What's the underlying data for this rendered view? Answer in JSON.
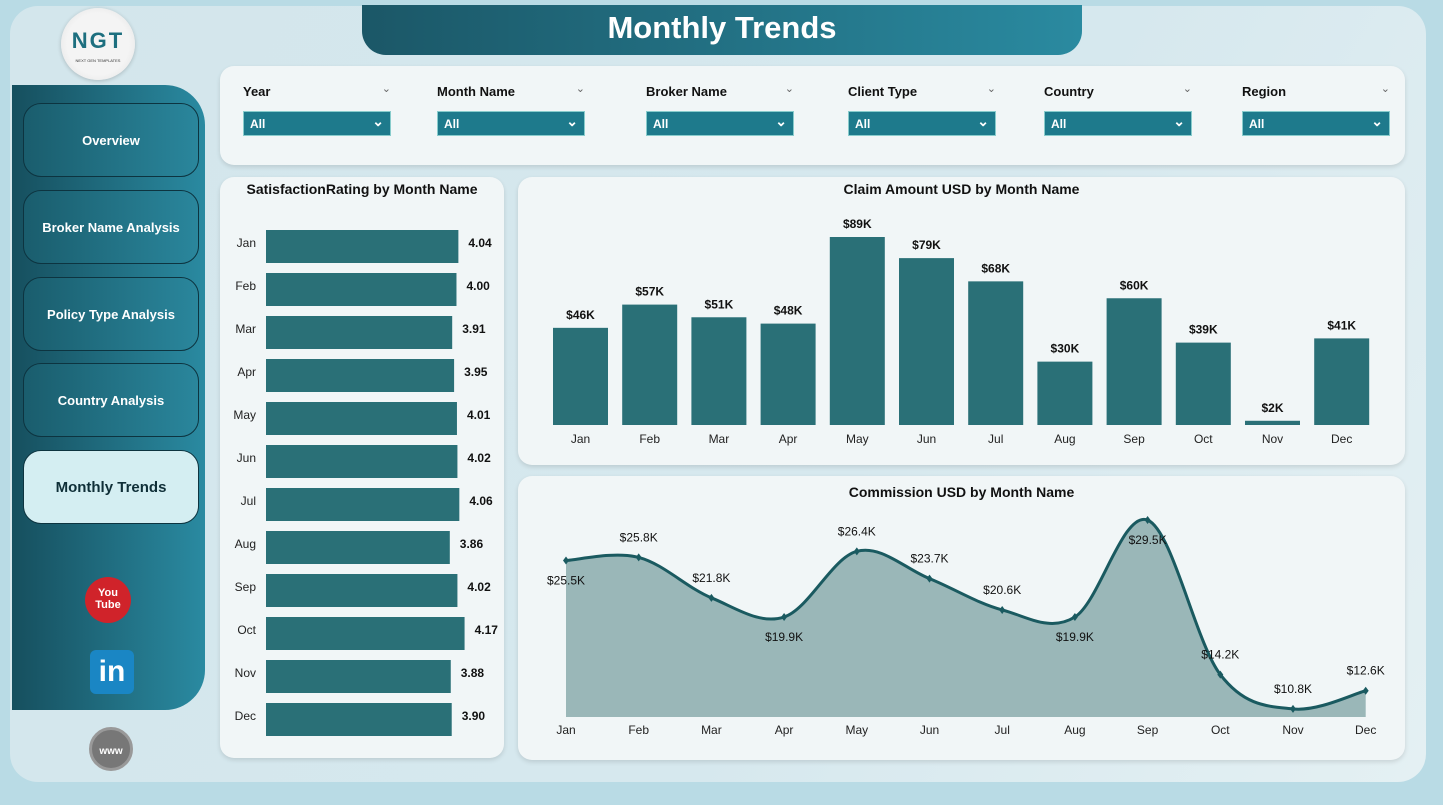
{
  "logo": {
    "text": "NGT",
    "subtext": "NEXT GEN TEMPLATES"
  },
  "title": "Monthly Trends",
  "nav": [
    {
      "label": "Overview"
    },
    {
      "label": "Broker Name Analysis"
    },
    {
      "label": "Policy Type Analysis"
    },
    {
      "label": "Country Analysis"
    },
    {
      "label": "Monthly Trends",
      "active": true
    }
  ],
  "social": {
    "youtube": "You Tube",
    "linkedin": "in",
    "web": "www"
  },
  "filters": [
    {
      "label": "Year",
      "value": "All"
    },
    {
      "label": "Month Name",
      "value": "All"
    },
    {
      "label": "Broker Name",
      "value": "All"
    },
    {
      "label": "Client Type",
      "value": "All"
    },
    {
      "label": "Country",
      "value": "All"
    },
    {
      "label": "Region",
      "value": "All"
    }
  ],
  "colors": {
    "bar": "#2a7077",
    "line": "#1a5a60",
    "area": "#9ab7b8",
    "accent": "#1e7a8c"
  },
  "chart_data": [
    {
      "type": "bar",
      "orientation": "horizontal",
      "title": "SatisfactionRating by Month Name",
      "categories": [
        "Jan",
        "Feb",
        "Mar",
        "Apr",
        "May",
        "Jun",
        "Jul",
        "Aug",
        "Sep",
        "Oct",
        "Nov",
        "Dec"
      ],
      "values": [
        4.04,
        4.0,
        3.91,
        3.95,
        4.01,
        4.02,
        4.06,
        3.86,
        4.02,
        4.17,
        3.88,
        3.9
      ],
      "labels": [
        "4.04",
        "4.00",
        "3.91",
        "3.95",
        "4.01",
        "4.02",
        "4.06",
        "3.86",
        "4.02",
        "4.17",
        "3.88",
        "3.90"
      ],
      "xlim": [
        0,
        4.2
      ]
    },
    {
      "type": "bar",
      "title": "Claim Amount USD by Month Name",
      "categories": [
        "Jan",
        "Feb",
        "Mar",
        "Apr",
        "May",
        "Jun",
        "Jul",
        "Aug",
        "Sep",
        "Oct",
        "Nov",
        "Dec"
      ],
      "values": [
        46000,
        57000,
        51000,
        48000,
        89000,
        79000,
        68000,
        30000,
        60000,
        39000,
        2000,
        41000
      ],
      "labels": [
        "$46K",
        "$57K",
        "$51K",
        "$48K",
        "$89K",
        "$79K",
        "$68K",
        "$30K",
        "$60K",
        "$39K",
        "$2K",
        "$41K"
      ],
      "ylim": [
        0,
        89000
      ]
    },
    {
      "type": "area",
      "title": "Commission USD by Month Name",
      "categories": [
        "Jan",
        "Feb",
        "Mar",
        "Apr",
        "May",
        "Jun",
        "Jul",
        "Aug",
        "Sep",
        "Oct",
        "Nov",
        "Dec"
      ],
      "values": [
        25500,
        25800,
        21800,
        19900,
        26400,
        23700,
        20600,
        19900,
        29500,
        14200,
        10800,
        12600
      ],
      "labels": [
        "$25.5K",
        "$25.8K",
        "$21.8K",
        "$19.9K",
        "$26.4K",
        "$23.7K",
        "$20.6K",
        "$19.9K",
        "$29.5K",
        "$14.2K",
        "$10.8K",
        "$12.6K"
      ],
      "ylim": [
        10000,
        30000
      ]
    }
  ]
}
